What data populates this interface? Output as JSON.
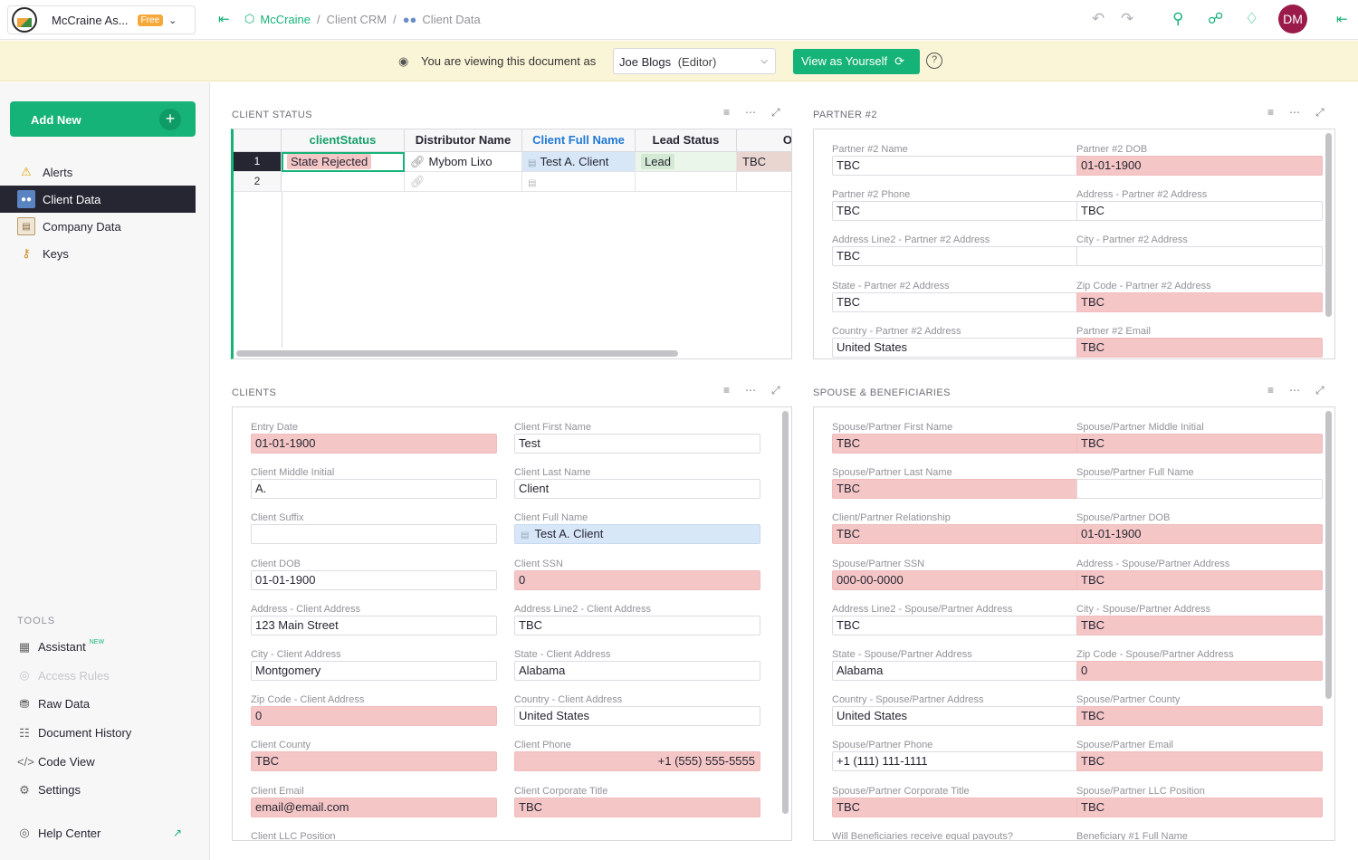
{
  "header": {
    "org_name": "McCraine As...",
    "org_badge": "Free",
    "crumb_home": "McCraine",
    "crumb_doc": "Client CRM",
    "crumb_page": "Client Data",
    "avatar_initials": "DM",
    "accent_color": "#16b378"
  },
  "viewbar": {
    "text": "You are viewing this document as",
    "user": "Joe Blogs",
    "role": "(Editor)",
    "view_self": "View as Yourself"
  },
  "sidebar": {
    "add_new": "Add New",
    "pages": [
      {
        "label": "Alerts",
        "icon": "warning-icon"
      },
      {
        "label": "Client Data",
        "icon": "people-icon",
        "active": true
      },
      {
        "label": "Company Data",
        "icon": "calendar-icon"
      },
      {
        "label": "Keys",
        "icon": "key-icon"
      }
    ],
    "tools_label": "TOOLS",
    "tools": [
      {
        "label": "Assistant",
        "badge": "NEW"
      },
      {
        "label": "Access Rules"
      },
      {
        "label": "Raw Data"
      },
      {
        "label": "Document History"
      },
      {
        "label": "Code View"
      },
      {
        "label": "Settings"
      }
    ],
    "help_center": "Help Center"
  },
  "client_status": {
    "title": "CLIENT STATUS",
    "columns": [
      "clientStatus",
      "Distributor Name",
      "Client Full Name",
      "Lead Status",
      "O"
    ],
    "rows": [
      {
        "num": "1",
        "cells": [
          "State Rejected",
          "Mybom Lixo",
          "Test A. Client",
          "Lead",
          "TBC"
        ]
      },
      {
        "num": "2",
        "cells": [
          "",
          "",
          "",
          "",
          ""
        ]
      }
    ]
  },
  "partner2": {
    "title": "PARTNER #2",
    "fields": [
      {
        "label": "Partner #2 Name",
        "value": "TBC",
        "style": ""
      },
      {
        "label": "Partner #2 DOB",
        "value": "01-01-1900",
        "style": "pink"
      },
      {
        "label": "Partner #2 Phone",
        "value": "TBC",
        "style": ""
      },
      {
        "label": "Address - Partner #2 Address",
        "value": "TBC",
        "style": ""
      },
      {
        "label": "Address Line2 - Partner #2 Address",
        "value": "TBC",
        "style": ""
      },
      {
        "label": "City - Partner #2 Address",
        "value": "",
        "style": ""
      },
      {
        "label": "State - Partner #2 Address",
        "value": "TBC",
        "style": ""
      },
      {
        "label": "Zip Code - Partner #2 Address",
        "value": "TBC",
        "style": "pink"
      },
      {
        "label": "Country - Partner #2 Address",
        "value": "United States",
        "style": ""
      },
      {
        "label": "Partner #2 Email",
        "value": "TBC",
        "style": "pink"
      }
    ]
  },
  "clients": {
    "title": "CLIENTS",
    "fields": [
      {
        "label": "Entry Date",
        "value": "01-01-1900",
        "style": "pink"
      },
      {
        "label": "Client First Name",
        "value": "Test",
        "style": ""
      },
      {
        "label": "Client Middle Initial",
        "value": "A.",
        "style": ""
      },
      {
        "label": "Client Last Name",
        "value": "Client",
        "style": ""
      },
      {
        "label": "Client Suffix",
        "value": "",
        "style": ""
      },
      {
        "label": "Client Full Name",
        "value": "Test A. Client",
        "style": "blue"
      },
      {
        "label": "Client DOB",
        "value": "01-01-1900",
        "style": ""
      },
      {
        "label": "Client SSN",
        "value": "0",
        "style": "pink"
      },
      {
        "label": "Address - Client Address",
        "value": "123 Main Street",
        "style": ""
      },
      {
        "label": "Address Line2 - Client Address",
        "value": "TBC",
        "style": ""
      },
      {
        "label": "City - Client Address",
        "value": "Montgomery",
        "style": ""
      },
      {
        "label": "State - Client Address",
        "value": "Alabama",
        "style": ""
      },
      {
        "label": "Zip Code - Client Address",
        "value": "0",
        "style": "pink"
      },
      {
        "label": "Country - Client Address",
        "value": "United States",
        "style": ""
      },
      {
        "label": "Client County",
        "value": "TBC",
        "style": "pink"
      },
      {
        "label": "Client Phone",
        "value": "+1 (555) 555-5555",
        "style": "pink right"
      },
      {
        "label": "Client Email",
        "value": "email@email.com",
        "style": "pink"
      },
      {
        "label": "Client Corporate Title",
        "value": "TBC",
        "style": "pink"
      },
      {
        "label": "Client LLC Position",
        "value": null,
        "style": ""
      }
    ]
  },
  "spouse": {
    "title": "SPOUSE & BENEFICIARIES",
    "fields": [
      {
        "label": "Spouse/Partner First Name",
        "value": "TBC",
        "style": "pink"
      },
      {
        "label": "Spouse/Partner Middle Initial",
        "value": "TBC",
        "style": "pink"
      },
      {
        "label": "Spouse/Partner Last Name",
        "value": "TBC",
        "style": "pink"
      },
      {
        "label": "Spouse/Partner Full Name",
        "value": "",
        "style": ""
      },
      {
        "label": "Client/Partner Relationship",
        "value": "TBC",
        "style": "pink"
      },
      {
        "label": "Spouse/Partner DOB",
        "value": "01-01-1900",
        "style": "pink"
      },
      {
        "label": "Spouse/Partner SSN",
        "value": "000-00-0000",
        "style": "pink"
      },
      {
        "label": "Address - Spouse/Partner Address",
        "value": "TBC",
        "style": "pink"
      },
      {
        "label": "Address Line2 - Spouse/Partner Address",
        "value": "TBC",
        "style": ""
      },
      {
        "label": "City - Spouse/Partner Address",
        "value": "TBC",
        "style": "pink"
      },
      {
        "label": "State - Spouse/Partner Address",
        "value": "Alabama",
        "style": ""
      },
      {
        "label": "Zip Code - Spouse/Partner Address",
        "value": "0",
        "style": "pink"
      },
      {
        "label": "Country - Spouse/Partner Address",
        "value": "United States",
        "style": ""
      },
      {
        "label": "Spouse/Partner County",
        "value": "TBC",
        "style": "pink"
      },
      {
        "label": "Spouse/Partner Phone",
        "value": "+1 (111) 111-1111",
        "style": ""
      },
      {
        "label": "Spouse/Partner Email",
        "value": "TBC",
        "style": "pink"
      },
      {
        "label": "Spouse/Partner Corporate Title",
        "value": "TBC",
        "style": "pink"
      },
      {
        "label": "Spouse/Partner LLC Position",
        "value": "TBC",
        "style": "pink"
      },
      {
        "label": "Will Beneficiaries receive equal payouts?",
        "value": null,
        "style": ""
      },
      {
        "label": "Beneficiary #1 Full Name",
        "value": null,
        "style": ""
      }
    ]
  }
}
